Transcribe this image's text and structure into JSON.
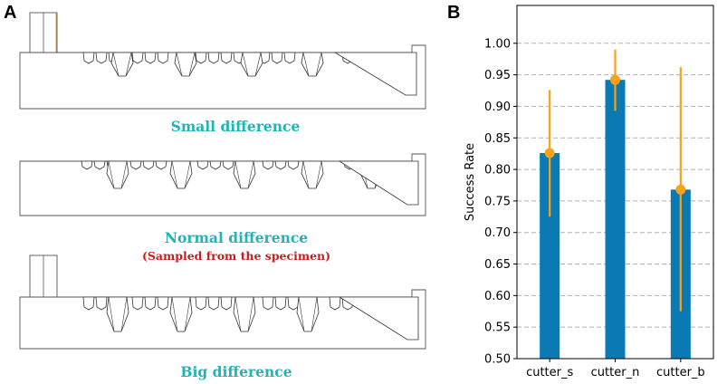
{
  "panel_a": {
    "label": "A",
    "diagrams": [
      {
        "caption": "Small difference",
        "subcaption": null
      },
      {
        "caption": "Normal difference",
        "subcaption": "(Sampled from the specimen)"
      },
      {
        "caption": "Big difference",
        "subcaption": null
      }
    ]
  },
  "panel_b": {
    "label": "B"
  },
  "colors": {
    "bar": "#0a7ab5",
    "error": "#f5a21c",
    "teal": "#1fb4b6",
    "red": "#cc1b1b",
    "grid": "#b0b0b0"
  },
  "chart_data": {
    "type": "bar",
    "title": "",
    "xlabel": "",
    "ylabel": "Success Rate",
    "categories": [
      "cutter_s",
      "cutter_n",
      "cutter_b"
    ],
    "values": [
      0.826,
      0.942,
      0.768
    ],
    "error_low": [
      0.725,
      0.893,
      0.575
    ],
    "error_high": [
      0.926,
      0.99,
      0.962
    ],
    "ylim": [
      0.5,
      1.06
    ],
    "yticks": [
      "0.50",
      "0.55",
      "0.60",
      "0.65",
      "0.70",
      "0.75",
      "0.80",
      "0.85",
      "0.90",
      "0.95",
      "1.00"
    ],
    "grid": "horizontal dashed"
  }
}
